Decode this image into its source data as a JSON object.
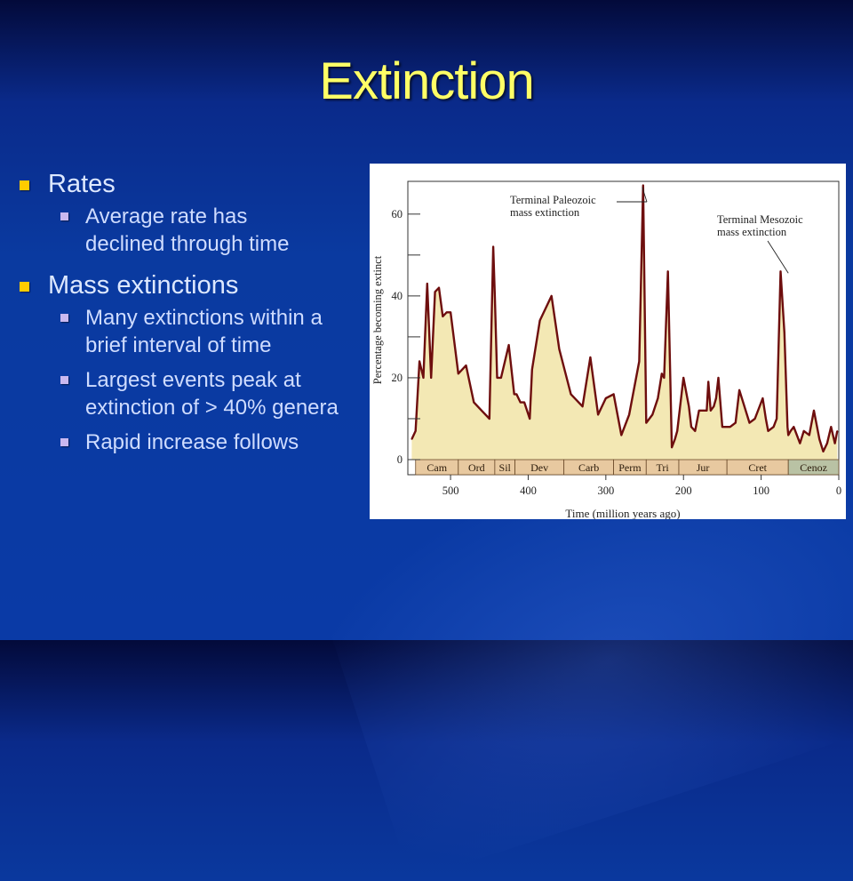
{
  "slide": {
    "title": "Extinction",
    "bullets": [
      {
        "label": "Rates",
        "sub": [
          "Average rate has\ndeclined through time"
        ]
      },
      {
        "label": "Mass extinctions",
        "sub": [
          "Many extinctions within a brief interval of time",
          "Largest events peak at extinction of  > 40% genera",
          "Rapid increase follows"
        ]
      }
    ],
    "colors": {
      "title": "#ffff66",
      "bullet_l1": "#ffcc00",
      "bullet_l2": "#c9b8f0"
    }
  },
  "chart_data": {
    "type": "area",
    "xlabel": "Time (million years ago)",
    "ylabel": "Percentage becoming extinct",
    "xlim": [
      555,
      0
    ],
    "ylim": [
      0,
      68
    ],
    "x_ticks": [
      500,
      400,
      300,
      200,
      100,
      0
    ],
    "y_ticks": [
      0,
      20,
      40,
      60
    ],
    "series": [
      {
        "x": [
          550,
          545,
          540,
          535,
          530,
          525,
          520,
          515,
          510,
          505,
          500,
          490,
          480,
          470,
          460,
          450,
          445,
          443,
          440,
          435,
          425,
          418,
          415,
          410,
          405,
          398,
          395,
          385,
          370,
          360,
          345,
          330,
          320,
          310,
          300,
          290,
          280,
          270,
          257,
          252,
          248,
          240,
          233,
          228,
          225,
          220,
          215,
          211,
          208,
          200,
          193,
          190,
          185,
          180,
          170,
          168,
          165,
          161,
          158,
          155,
          150,
          146,
          143,
          140,
          133,
          128,
          115,
          108,
          98,
          94,
          91,
          84,
          80,
          75,
          70,
          66,
          65,
          62,
          58,
          50,
          45,
          38,
          32,
          25,
          20,
          15,
          10,
          5,
          2
        ],
        "y": [
          5,
          7,
          24,
          20,
          43,
          20,
          41,
          42,
          35,
          36,
          36,
          21,
          23,
          14,
          12,
          10,
          52,
          40,
          20,
          20,
          28,
          16,
          16,
          14,
          14,
          10,
          22,
          34,
          40,
          27,
          16,
          13,
          25,
          11,
          15,
          16,
          6,
          11,
          24,
          67,
          9,
          11,
          15,
          21,
          20,
          46,
          3,
          5,
          7,
          20,
          13,
          8,
          7,
          12,
          12,
          19,
          12,
          13,
          15,
          20,
          8,
          8,
          8,
          8,
          9,
          17,
          9,
          10,
          15,
          10,
          7,
          8,
          10,
          46,
          31,
          8,
          6,
          7,
          8,
          4,
          7,
          6,
          12,
          5,
          2,
          4,
          8,
          4,
          7
        ]
      }
    ],
    "periods": [
      {
        "label": "Cam",
        "start": 545,
        "end": 490
      },
      {
        "label": "Ord",
        "start": 490,
        "end": 443
      },
      {
        "label": "Sil",
        "start": 443,
        "end": 417
      },
      {
        "label": "Dev",
        "start": 417,
        "end": 354
      },
      {
        "label": "Carb",
        "start": 354,
        "end": 290
      },
      {
        "label": "Perm",
        "start": 290,
        "end": 248
      },
      {
        "label": "Tri",
        "start": 248,
        "end": 206
      },
      {
        "label": "Jur",
        "start": 206,
        "end": 144
      },
      {
        "label": "Cret",
        "start": 144,
        "end": 65
      },
      {
        "label": "Cenoz",
        "start": 65,
        "end": 0
      }
    ],
    "annotations": [
      {
        "text": [
          "Terminal Paleozoic",
          "mass extinction"
        ],
        "x": 252,
        "y": 67
      },
      {
        "text": [
          "Terminal Mesozoic",
          "mass extinction"
        ],
        "x": 65,
        "y": 46
      }
    ],
    "colors": {
      "fill": "#f3e8b4",
      "line": "#6e0e0e",
      "period_band": "#e8c9a0",
      "cenoz_band": "#b9c2a4"
    }
  }
}
